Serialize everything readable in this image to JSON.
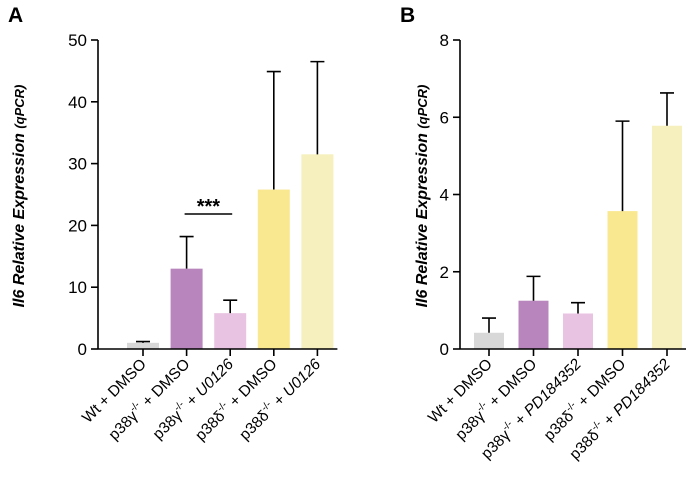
{
  "chart_data": [
    {
      "type": "bar",
      "panel": "A",
      "ylabel_main": "Il6 Relative Expression",
      "ylabel_sub": "(qPCR)",
      "ylim": [
        0,
        50
      ],
      "yticks": [
        0,
        10,
        20,
        30,
        40,
        50
      ],
      "ytick_labels": [
        "0",
        "10",
        "20",
        "30",
        "40",
        "50"
      ],
      "categories": [
        {
          "prefix": "Wt + DMSO",
          "sup": "",
          "suffix": "",
          "italic_suffix": ""
        },
        {
          "prefix": "p38γ",
          "sup": "-/-",
          "suffix": " + DMSO",
          "italic_suffix": ""
        },
        {
          "prefix": "p38γ",
          "sup": "-/-",
          "suffix": " + ",
          "italic_suffix": "U0126"
        },
        {
          "prefix": "p38δ",
          "sup": "-/-",
          "suffix": " + DMSO",
          "italic_suffix": ""
        },
        {
          "prefix": "p38δ",
          "sup": "-/-",
          "suffix": " + ",
          "italic_suffix": "U0126"
        }
      ],
      "values": [
        1.0,
        13.0,
        5.8,
        25.8,
        31.5
      ],
      "errors": [
        0.2,
        5.2,
        2.1,
        19.1,
        15.0
      ],
      "colors": [
        "#d8d8d8",
        "#b886bd",
        "#e9c4e2",
        "#fae890",
        "#f5f0bd"
      ],
      "significance": {
        "from": 1,
        "to": 2,
        "label": "***"
      }
    },
    {
      "type": "bar",
      "panel": "B",
      "ylabel_main": "Il6 Relative Expression",
      "ylabel_sub": "(qPCR)",
      "ylim": [
        0,
        8
      ],
      "yticks": [
        0,
        2,
        4,
        6,
        8
      ],
      "ytick_labels": [
        "0",
        "2",
        "4",
        "6",
        "8"
      ],
      "categories": [
        {
          "prefix": "Wt + DMSO",
          "sup": "",
          "suffix": "",
          "italic_suffix": ""
        },
        {
          "prefix": "p38γ",
          "sup": "-/-",
          "suffix": " + DMSO",
          "italic_suffix": ""
        },
        {
          "prefix": "p38γ",
          "sup": "-/-",
          "suffix": " + ",
          "italic_suffix": "PD184352"
        },
        {
          "prefix": "p38δ",
          "sup": "-/-",
          "suffix": " + DMSO",
          "italic_suffix": ""
        },
        {
          "prefix": "p38δ",
          "sup": "-/-",
          "suffix": " + ",
          "italic_suffix": "PD184352"
        }
      ],
      "values": [
        0.42,
        1.25,
        0.92,
        3.57,
        5.78
      ],
      "errors": [
        0.38,
        0.63,
        0.28,
        2.33,
        0.85
      ],
      "colors": [
        "#d8d8d8",
        "#b886bd",
        "#e9c4e2",
        "#fae890",
        "#f5f0bd"
      ]
    }
  ]
}
